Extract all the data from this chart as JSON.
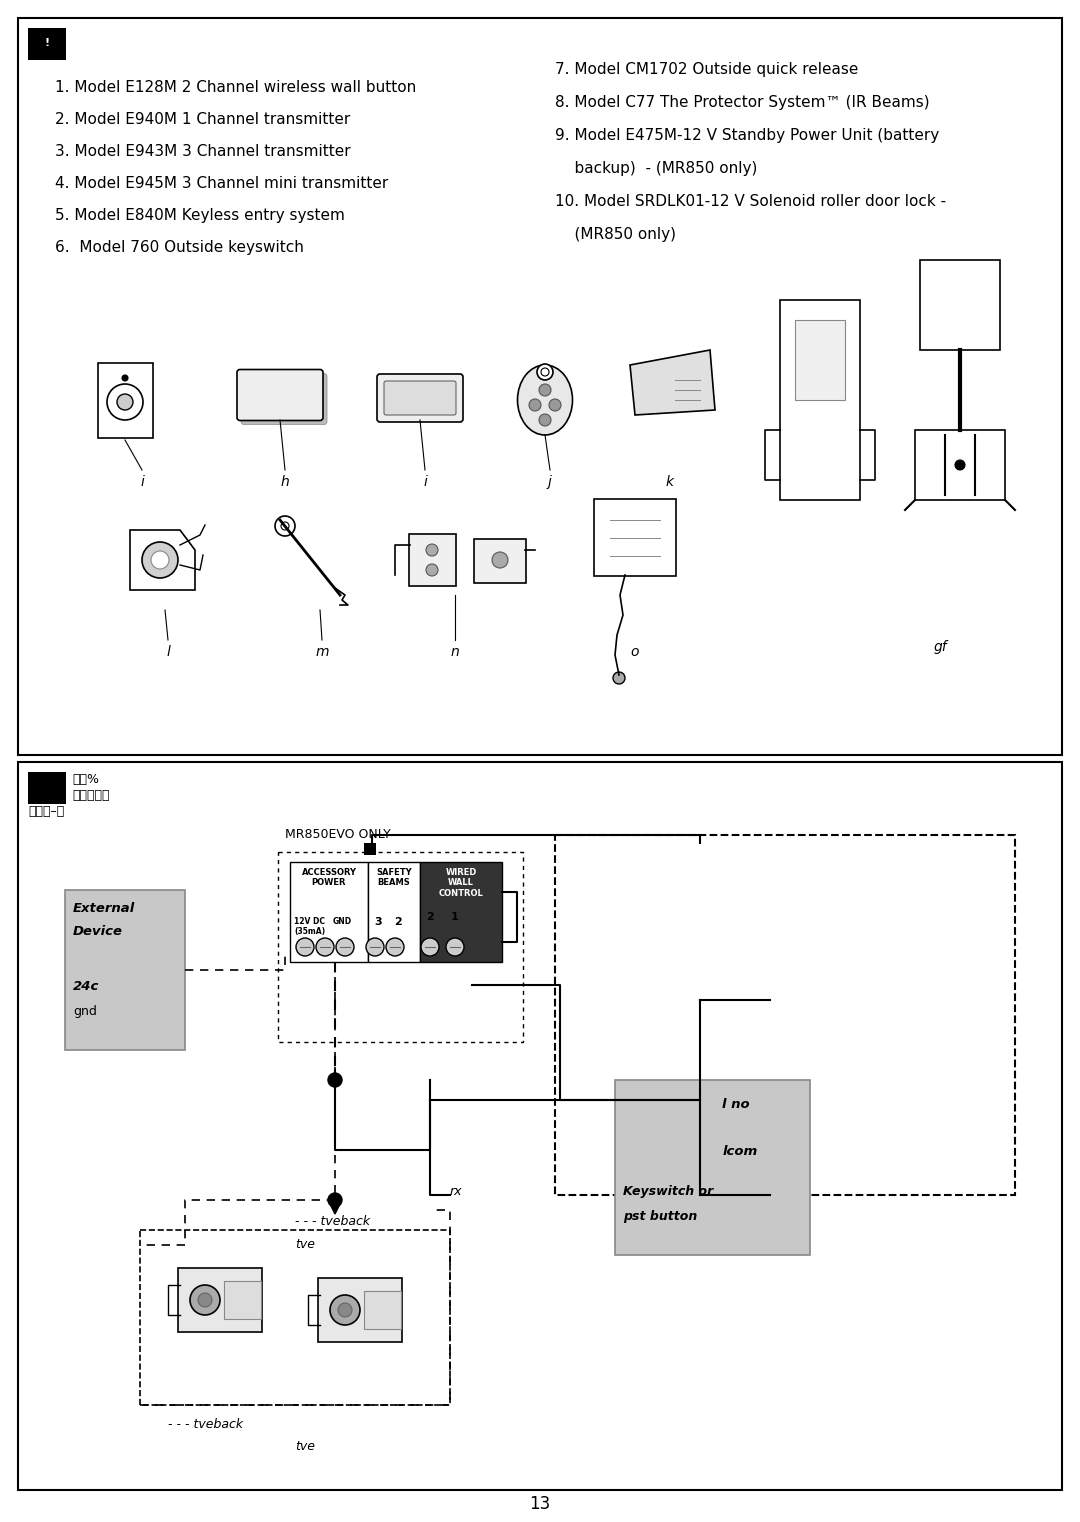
{
  "page_bg": "#ffffff",
  "section1_left_items": [
    "1. Model E128M 2 Channel wireless wall button",
    "2. Model E940M 1 Channel transmitter",
    "3. Model E943M 3 Channel transmitter",
    "4. Model E945M 3 Channel mini transmitter",
    "5. Model E840M Keyless entry system",
    "6.  Model 760 Outside keyswitch"
  ],
  "section1_right_items": [
    "7. Model CM1702 Outside quick release",
    "8. Model C77 The Protector System™ (IR Beams)",
    "9. Model E475M-12 V Standby Power Unit (battery",
    "    backup)  - (MR850 only)",
    "10. Model SRDLK01-12 V Solenoid roller door lock -",
    "    (MR850 only)"
  ],
  "section2_header": "MR850EVO ONLY",
  "terminal_cols": [
    "ACCESSORY\nPOWER",
    "SAFETY\nBEAMS",
    "WIRED\nWALL\nCONTROL"
  ],
  "page_number": "13"
}
